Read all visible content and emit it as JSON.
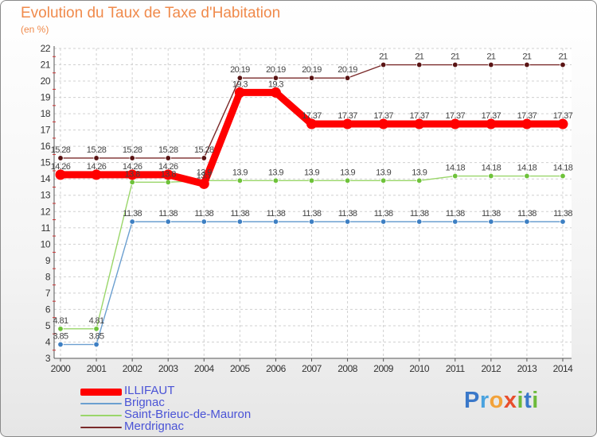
{
  "colors": {
    "title": "#f08a4b",
    "legend_text": "#4a53d6",
    "grid": "#d0d0d0",
    "axis": "#555555",
    "tick_text": "#333333",
    "value_text": "#444444"
  },
  "logo": {
    "letters": [
      "P",
      "r",
      "o",
      "x",
      "i",
      "t",
      "i"
    ],
    "letter_colors": [
      "#3a78c9",
      "#4aa3df",
      "#f2a23a",
      "#e84e2c",
      "#6dba3a",
      "#3a78c9",
      "#6dba3a"
    ]
  },
  "chart_data": {
    "type": "line",
    "title": "Evolution du Taux de Taxe d'Habitation",
    "subtitle": "(en %)",
    "xlabel": "",
    "ylabel": "",
    "ylim": [
      3,
      22
    ],
    "yticks": [
      "3",
      "4",
      "5",
      "6",
      "7",
      "8",
      "9",
      "10",
      "11",
      "12",
      "13",
      "14",
      "15",
      "16",
      "17",
      "18",
      "19",
      "20",
      "21",
      "22"
    ],
    "categories": [
      "2000",
      "2001",
      "2002",
      "2003",
      "2004",
      "2005",
      "2006",
      "2007",
      "2008",
      "2009",
      "2010",
      "2011",
      "2012",
      "2013",
      "2014"
    ],
    "grid": true,
    "legend_position": "bottom-left",
    "series": [
      {
        "name": "ILLIFAUT",
        "color": "#ff0000",
        "line_color": "#ff0000",
        "marker_color": "#ff0000",
        "width": 9,
        "marker_r": 6.5,
        "values": [
          14.26,
          14.26,
          14.26,
          14.26,
          13.7,
          19.3,
          19.3,
          17.37,
          17.37,
          17.37,
          17.37,
          17.37,
          17.37,
          17.37,
          17.37
        ],
        "labels": [
          "14.26",
          "14.26",
          "14.26",
          "14.26",
          "13.7",
          "19.3",
          "19.3",
          "17.37",
          "17.37",
          "17.37",
          "17.37",
          "17.37",
          "17.37",
          "17.37",
          "17.37"
        ]
      },
      {
        "name": "Brignac",
        "color": "#6b9fd0",
        "line_color": "#6b9fd0",
        "marker_color": "#3d7fc3",
        "width": 1.4,
        "marker_r": 3.3,
        "values": [
          3.85,
          3.85,
          11.38,
          11.38,
          11.38,
          11.38,
          11.38,
          11.38,
          11.38,
          11.38,
          11.38,
          11.38,
          11.38,
          11.38,
          11.38
        ],
        "labels": [
          "3.85",
          "3.85",
          "11.38",
          "11.38",
          "11.38",
          "11.38",
          "11.38",
          "11.38",
          "11.38",
          "11.38",
          "11.38",
          "11.38",
          "11.38",
          "11.38",
          "11.38"
        ]
      },
      {
        "name": "Saint-Brieuc-de-Mauron",
        "color": "#9ad66a",
        "line_color": "#9ad66a",
        "marker_color": "#6ec23a",
        "width": 1.4,
        "marker_r": 3.3,
        "values": [
          4.81,
          4.81,
          13.8,
          13.8,
          13.9,
          13.9,
          13.9,
          13.9,
          13.9,
          13.9,
          13.9,
          14.18,
          14.18,
          14.18,
          14.18
        ],
        "labels": [
          "4.81",
          "4.81",
          "13.8",
          "13.8",
          "13.9",
          "13.9",
          "13.9",
          "13.9",
          "13.9",
          "13.9",
          "13.9",
          "14.18",
          "14.18",
          "14.18",
          "14.18"
        ]
      },
      {
        "name": "Merdrignac",
        "color": "#7a2a2a",
        "line_color": "#7a2a2a",
        "marker_color": "#5a1414",
        "width": 1.4,
        "marker_r": 3.3,
        "values": [
          15.28,
          15.28,
          15.28,
          15.28,
          15.28,
          20.19,
          20.19,
          20.19,
          20.19,
          21,
          21,
          21,
          21,
          21,
          21
        ],
        "labels": [
          "15.28",
          "15.28",
          "15.28",
          "15.28",
          "15.28",
          "20.19",
          "20.19",
          "20.19",
          "20.19",
          "21",
          "21",
          "21",
          "21",
          "21",
          "21"
        ]
      }
    ]
  }
}
